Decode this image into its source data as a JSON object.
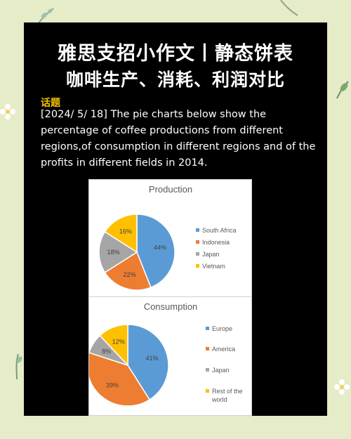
{
  "header": {
    "title_line1": "雅思支招小作文丨静态饼表",
    "title_line2": "咖啡生产、消耗、利润对比"
  },
  "topic": {
    "label": "话题",
    "text": "[2024/ 5/ 18] The pie charts below show the percentage of coffee productions from different regions,of consumption in different regions and of the profits in different fields in 2014."
  },
  "chart_data": [
    {
      "type": "pie",
      "title": "Production",
      "categories": [
        "South Africa",
        "Indonesia",
        "Japan",
        "Vietnam"
      ],
      "values": [
        44,
        22,
        18,
        16
      ],
      "data_labels": [
        "44%",
        "22%",
        "18%",
        "16%"
      ],
      "colors": [
        "#5b9bd5",
        "#ed7d31",
        "#a5a5a5",
        "#ffc000"
      ],
      "legend": "right"
    },
    {
      "type": "pie",
      "title": "Consumption",
      "categories": [
        "Europe",
        "America",
        "Japan",
        "Rest of the world"
      ],
      "values": [
        41,
        39,
        8,
        12
      ],
      "data_labels": [
        "41%",
        "39%",
        "8%",
        "12%"
      ],
      "colors": [
        "#5b9bd5",
        "#ed7d31",
        "#a5a5a5",
        "#ffc000"
      ],
      "legend": "right"
    }
  ]
}
